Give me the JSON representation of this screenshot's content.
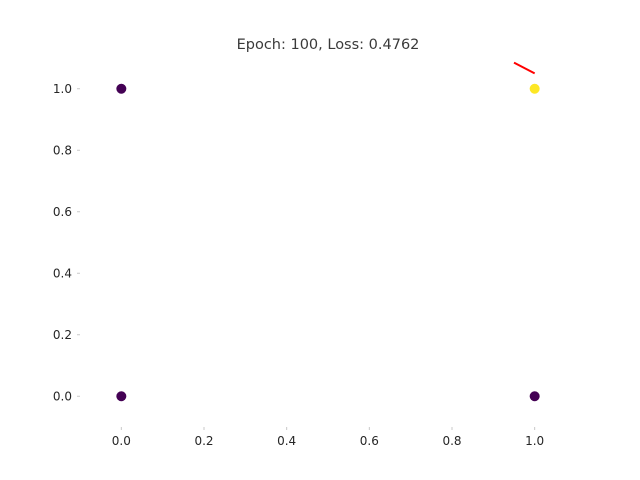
{
  "chart_data": {
    "type": "scatter",
    "title": "Epoch: 100, Loss: 0.4762",
    "xlabel": "",
    "ylabel": "",
    "xlim": [
      -0.1,
      1.1
    ],
    "ylim": [
      -0.1,
      1.1
    ],
    "grid": false,
    "xticks": [
      0.0,
      0.2,
      0.4,
      0.6,
      0.8,
      1.0
    ],
    "xtick_labels": [
      "0.0",
      "0.2",
      "0.4",
      "0.6",
      "0.8",
      "1.0"
    ],
    "yticks": [
      0.0,
      0.2,
      0.4,
      0.6,
      0.8,
      1.0
    ],
    "ytick_labels": [
      "0.0",
      "0.2",
      "0.4",
      "0.6",
      "0.8",
      "1.0"
    ],
    "points": [
      {
        "x": 0.0,
        "y": 0.0,
        "class": 0,
        "color": "#440154"
      },
      {
        "x": 0.0,
        "y": 1.0,
        "class": 0,
        "color": "#440154"
      },
      {
        "x": 1.0,
        "y": 0.0,
        "class": 0,
        "color": "#440154"
      },
      {
        "x": 1.0,
        "y": 1.0,
        "class": 1,
        "color": "#fde725"
      }
    ],
    "decision_boundary": {
      "color": "#ff0000",
      "points": [
        {
          "x": 0.95,
          "y": 1.085
        },
        {
          "x": 1.0,
          "y": 1.05
        }
      ]
    }
  }
}
